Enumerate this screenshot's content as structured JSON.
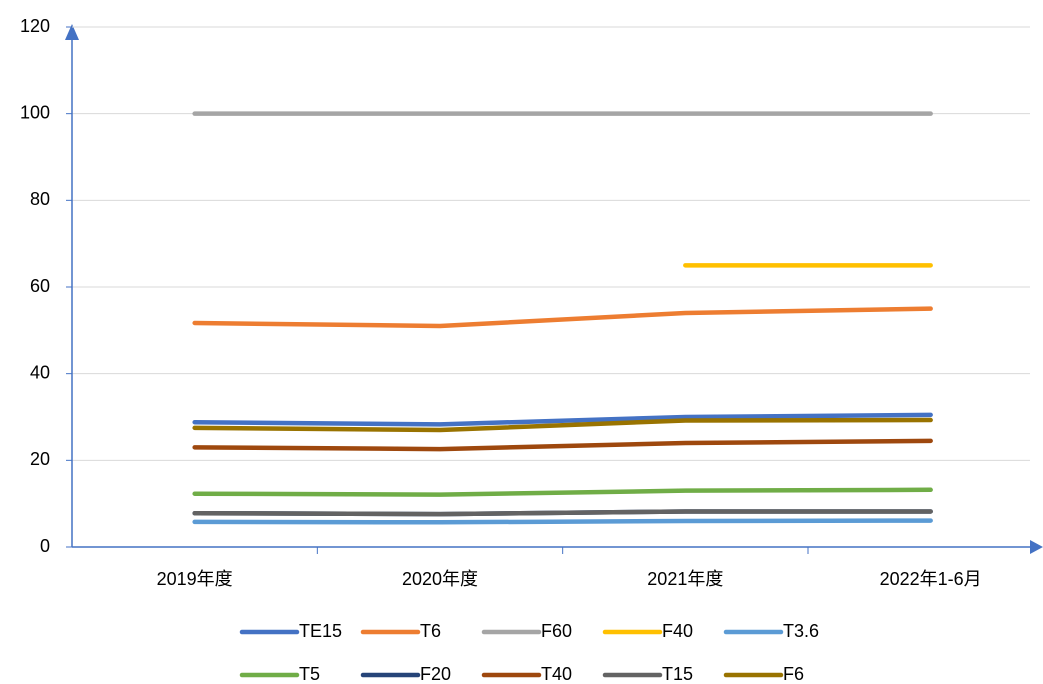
{
  "chart_data": {
    "type": "line",
    "categories": [
      "2019年度",
      "2020年度",
      "2021年度",
      "2022年1-6月"
    ],
    "series": [
      {
        "name": "TE15",
        "color": "#4472c4",
        "values": [
          28.8,
          28.3,
          30,
          30.5
        ]
      },
      {
        "name": "T6",
        "color": "#ed7d31",
        "values": [
          51.7,
          51,
          54,
          55
        ]
      },
      {
        "name": "F60",
        "color": "#a5a5a5",
        "values": [
          100,
          100,
          100,
          100
        ]
      },
      {
        "name": "F40",
        "color": "#ffc000",
        "values": [
          null,
          null,
          65,
          65
        ]
      },
      {
        "name": "T3.6",
        "color": "#5b9bd5",
        "values": [
          5.8,
          5.7,
          6,
          6.1
        ]
      },
      {
        "name": "T5",
        "color": "#70ad47",
        "values": [
          12.3,
          12.1,
          13,
          13.2
        ]
      },
      {
        "name": "F20",
        "color": "#264478",
        "values": [
          7.8,
          7.6,
          8.2,
          8.2
        ]
      },
      {
        "name": "T40",
        "color": "#9e480e",
        "values": [
          23,
          22.6,
          24,
          24.5
        ]
      },
      {
        "name": "T15",
        "color": "#636363",
        "values": [
          7.8,
          7.6,
          8.2,
          8.2
        ]
      },
      {
        "name": "F6",
        "color": "#997300",
        "values": [
          27.5,
          27,
          29.2,
          29.3
        ]
      }
    ],
    "ylim": [
      0,
      120
    ],
    "yticks": [
      0,
      20,
      40,
      60,
      80,
      100,
      120
    ],
    "grid": true,
    "legend": "bottom"
  }
}
